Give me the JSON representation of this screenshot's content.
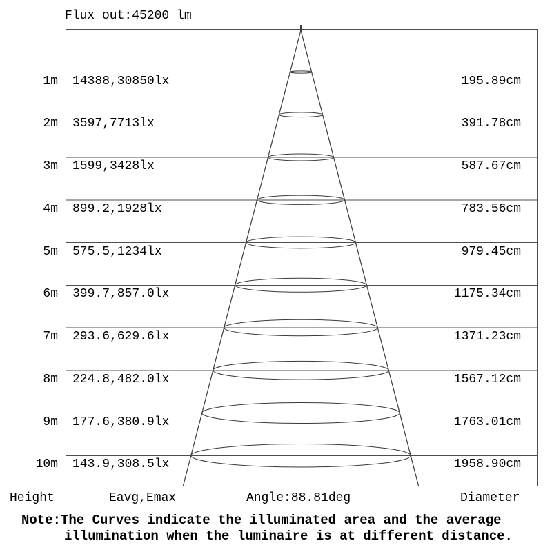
{
  "title": "Flux out:45200 lm",
  "footer": {
    "height": "Height",
    "eavg_emax": "Eavg,Emax",
    "angle": "Angle:88.81deg",
    "diameter": "Diameter"
  },
  "note": {
    "line1": "Note:The Curves indicate the illuminated area and the average",
    "line2": "illumination when the luminaire is at different distance."
  },
  "rows": [
    {
      "height": "1m",
      "eavg_emax": "14388,30850lx",
      "diameter": "195.89cm"
    },
    {
      "height": "2m",
      "eavg_emax": "3597,7713lx",
      "diameter": "391.78cm"
    },
    {
      "height": "3m",
      "eavg_emax": "1599,3428lx",
      "diameter": "587.67cm"
    },
    {
      "height": "4m",
      "eavg_emax": "899.2,1928lx",
      "diameter": "783.56cm"
    },
    {
      "height": "5m",
      "eavg_emax": "575.5,1234lx",
      "diameter": "979.45cm"
    },
    {
      "height": "6m",
      "eavg_emax": "399.7,857.0lx",
      "diameter": "1175.34cm"
    },
    {
      "height": "7m",
      "eavg_emax": "293.6,629.6lx",
      "diameter": "1371.23cm"
    },
    {
      "height": "8m",
      "eavg_emax": "224.8,482.0lx",
      "diameter": "1567.12cm"
    },
    {
      "height": "9m",
      "eavg_emax": "177.6,380.9lx",
      "diameter": "1763.01cm"
    },
    {
      "height": "10m",
      "eavg_emax": "143.9,308.5lx",
      "diameter": "1958.90cm"
    }
  ],
  "chart_data": {
    "type": "table",
    "title": "Flux out:45200 lm",
    "flux_out_lm": 45200,
    "beam_angle_deg": 88.81,
    "columns": [
      "Height",
      "Eavg,Emax",
      "Diameter"
    ],
    "heights_m": [
      1,
      2,
      3,
      4,
      5,
      6,
      7,
      8,
      9,
      10
    ],
    "eavg_lx": [
      14388,
      3597,
      1599,
      899.2,
      575.5,
      399.7,
      293.6,
      224.8,
      177.6,
      143.9
    ],
    "emax_lx": [
      30850,
      7713,
      3428,
      1928,
      1234,
      857.0,
      629.6,
      482.0,
      380.9,
      308.5
    ],
    "diameter_cm": [
      195.89,
      391.78,
      587.67,
      783.56,
      979.45,
      1175.34,
      1371.23,
      1567.12,
      1763.01,
      1958.9
    ],
    "note": "The Curves indicate the illuminated area and the average illumination when the luminaire is at different distance."
  },
  "colors": {
    "background": "#ffffff",
    "grid_line": "#4d4d4d",
    "cone_line": "#3a3a3a",
    "text": "#000000"
  }
}
